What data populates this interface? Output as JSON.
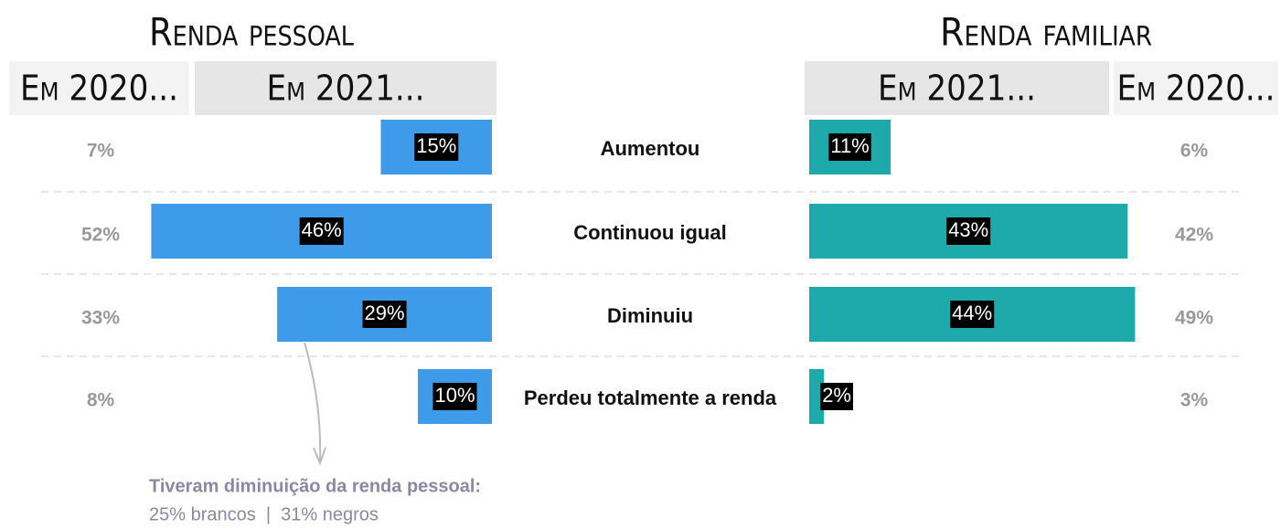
{
  "chart_data": [
    {
      "type": "bar",
      "title": "Renda pessoal",
      "color": "#3d9be9",
      "categories": [
        "Aumentou",
        "Continuou igual",
        "Diminuiu",
        "Perdeu totalmente a renda"
      ],
      "series": [
        {
          "name": "Em 2021...",
          "values": [
            15,
            46,
            29,
            10
          ],
          "value_labels": [
            "15%",
            "46%",
            "29%",
            "10%"
          ]
        },
        {
          "name": "Em 2020...",
          "values": [
            7,
            52,
            33,
            8
          ],
          "value_labels": [
            "7%",
            "52%",
            "33%",
            "8%"
          ]
        }
      ],
      "annotation": {
        "title": "Tiveram diminuição da renda pessoal:",
        "text": "25% brancos  |  31% negros"
      }
    },
    {
      "type": "bar",
      "title": "Renda familiar",
      "color": "#1eaaaa",
      "series": [
        {
          "name": "Em 2021...",
          "values": [
            11,
            43,
            44,
            2
          ],
          "value_labels": [
            "11%",
            "43%",
            "44%",
            "2%"
          ]
        },
        {
          "name": "Em 2020...",
          "values": [
            6,
            42,
            49,
            3
          ],
          "value_labels": [
            "6%",
            "42%",
            "49%",
            "3%"
          ]
        }
      ]
    }
  ]
}
